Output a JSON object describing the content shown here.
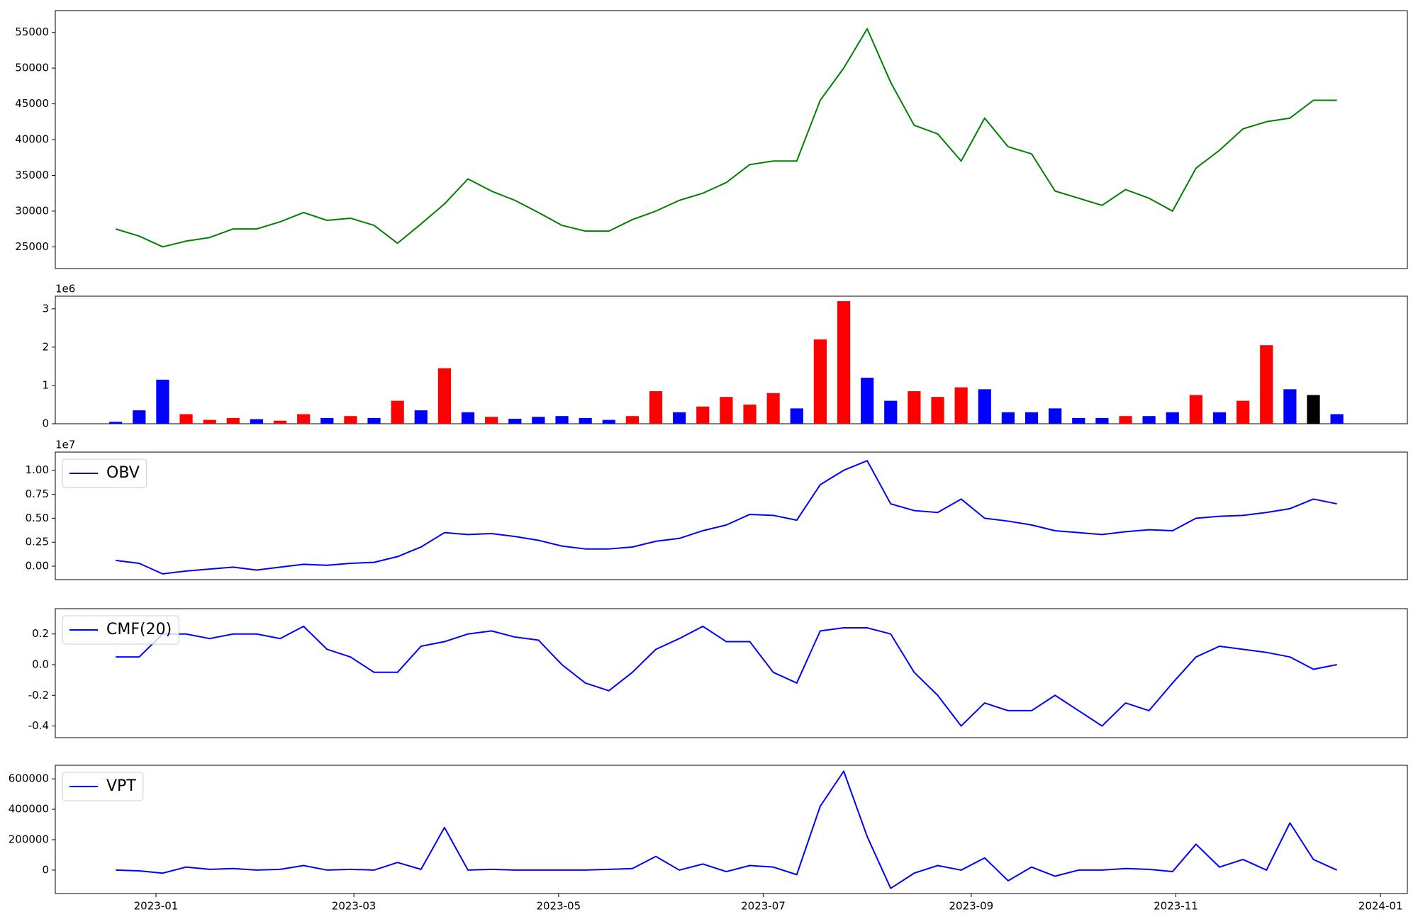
{
  "chart_data": [
    {
      "type": "line",
      "x": [
        "2022-12-20",
        "2022-12-27",
        "2023-01-03",
        "2023-01-10",
        "2023-01-17",
        "2023-01-24",
        "2023-01-31",
        "2023-02-07",
        "2023-02-14",
        "2023-02-21",
        "2023-02-28",
        "2023-03-07",
        "2023-03-14",
        "2023-03-21",
        "2023-03-28",
        "2023-04-04",
        "2023-04-11",
        "2023-04-18",
        "2023-04-25",
        "2023-05-02",
        "2023-05-09",
        "2023-05-16",
        "2023-05-23",
        "2023-05-30",
        "2023-06-06",
        "2023-06-13",
        "2023-06-20",
        "2023-06-27",
        "2023-07-04",
        "2023-07-11",
        "2023-07-18",
        "2023-07-25",
        "2023-08-01",
        "2023-08-08",
        "2023-08-15",
        "2023-08-22",
        "2023-08-29",
        "2023-09-05",
        "2023-09-12",
        "2023-09-19",
        "2023-09-26",
        "2023-10-03",
        "2023-10-10",
        "2023-10-17",
        "2023-10-24",
        "2023-10-31",
        "2023-11-07",
        "2023-11-14",
        "2023-11-21",
        "2023-11-28",
        "2023-12-05",
        "2023-12-12",
        "2023-12-19"
      ],
      "series": [
        {
          "color": "#008000",
          "values": [
            27500,
            26500,
            25000,
            25800,
            26300,
            27500,
            27500,
            28500,
            29800,
            28700,
            29000,
            28000,
            25500,
            28200,
            31000,
            34500,
            32800,
            31500,
            29800,
            28000,
            27200,
            27200,
            28800,
            30000,
            31500,
            32500,
            34000,
            36500,
            37000,
            37000,
            45500,
            50000,
            55500,
            48000,
            42000,
            40800,
            37000,
            43000,
            39000,
            38000,
            32800,
            31800,
            30800,
            33000,
            31800,
            30000,
            36000,
            38500,
            41500,
            42500,
            43000,
            45500,
            45500
          ]
        }
      ],
      "xlim": [
        "2022-12-02",
        "2024-01-09"
      ],
      "ylim": [
        21960,
        58040
      ],
      "yticks": [
        25000,
        30000,
        35000,
        40000,
        45000,
        50000,
        55000
      ]
    },
    {
      "type": "bar",
      "x": [
        "2022-12-20",
        "2022-12-27",
        "2023-01-03",
        "2023-01-10",
        "2023-01-17",
        "2023-01-24",
        "2023-01-31",
        "2023-02-07",
        "2023-02-14",
        "2023-02-21",
        "2023-02-28",
        "2023-03-07",
        "2023-03-14",
        "2023-03-21",
        "2023-03-28",
        "2023-04-04",
        "2023-04-11",
        "2023-04-18",
        "2023-04-25",
        "2023-05-02",
        "2023-05-09",
        "2023-05-16",
        "2023-05-23",
        "2023-05-30",
        "2023-06-06",
        "2023-06-13",
        "2023-06-20",
        "2023-06-27",
        "2023-07-04",
        "2023-07-11",
        "2023-07-18",
        "2023-07-25",
        "2023-08-01",
        "2023-08-08",
        "2023-08-15",
        "2023-08-22",
        "2023-08-29",
        "2023-09-05",
        "2023-09-12",
        "2023-09-19",
        "2023-09-26",
        "2023-10-03",
        "2023-10-10",
        "2023-10-17",
        "2023-10-24",
        "2023-10-31",
        "2023-11-07",
        "2023-11-14",
        "2023-11-21",
        "2023-11-28",
        "2023-12-05",
        "2023-12-12",
        "2023-12-19"
      ],
      "series": [
        {
          "values": [
            50000,
            350000,
            1150000,
            250000,
            100000,
            150000,
            120000,
            80000,
            250000,
            150000,
            200000,
            150000,
            600000,
            350000,
            1450000,
            300000,
            180000,
            130000,
            180000,
            200000,
            150000,
            100000,
            200000,
            850000,
            300000,
            450000,
            700000,
            500000,
            800000,
            400000,
            2200000,
            3200000,
            1200000,
            600000,
            850000,
            700000,
            950000,
            900000,
            300000,
            300000,
            400000,
            150000,
            150000,
            200000,
            200000,
            300000,
            750000,
            300000,
            600000,
            2050000,
            900000,
            750000,
            250000
          ],
          "colors": [
            "#0000ff",
            "#0000ff",
            "#0000ff",
            "#ff0000",
            "#ff0000",
            "#ff0000",
            "#0000ff",
            "#ff0000",
            "#ff0000",
            "#0000ff",
            "#ff0000",
            "#0000ff",
            "#ff0000",
            "#0000ff",
            "#ff0000",
            "#0000ff",
            "#ff0000",
            "#0000ff",
            "#0000ff",
            "#0000ff",
            "#0000ff",
            "#0000ff",
            "#ff0000",
            "#ff0000",
            "#0000ff",
            "#ff0000",
            "#ff0000",
            "#ff0000",
            "#ff0000",
            "#0000ff",
            "#ff0000",
            "#ff0000",
            "#0000ff",
            "#0000ff",
            "#ff0000",
            "#ff0000",
            "#ff0000",
            "#0000ff",
            "#0000ff",
            "#0000ff",
            "#0000ff",
            "#0000ff",
            "#0000ff",
            "#ff0000",
            "#0000ff",
            "#0000ff",
            "#ff0000",
            "#0000ff",
            "#ff0000",
            "#ff0000",
            "#0000ff",
            "#000000",
            "#0000ff"
          ]
        }
      ],
      "xlim": [
        "2022-12-02",
        "2024-01-09"
      ],
      "ylim": [
        0,
        3330000
      ],
      "yticks": [
        {
          "value": 0,
          "label": "0"
        },
        {
          "value": 1000000,
          "label": "1"
        },
        {
          "value": 2000000,
          "label": "2"
        },
        {
          "value": 3000000,
          "label": "3"
        }
      ],
      "y_offset_label": "1e6"
    },
    {
      "type": "line",
      "x": [
        "2022-12-20",
        "2022-12-27",
        "2023-01-03",
        "2023-01-10",
        "2023-01-17",
        "2023-01-24",
        "2023-01-31",
        "2023-02-07",
        "2023-02-14",
        "2023-02-21",
        "2023-02-28",
        "2023-03-07",
        "2023-03-14",
        "2023-03-21",
        "2023-03-28",
        "2023-04-04",
        "2023-04-11",
        "2023-04-18",
        "2023-04-25",
        "2023-05-02",
        "2023-05-09",
        "2023-05-16",
        "2023-05-23",
        "2023-05-30",
        "2023-06-06",
        "2023-06-13",
        "2023-06-20",
        "2023-06-27",
        "2023-07-04",
        "2023-07-11",
        "2023-07-18",
        "2023-07-25",
        "2023-08-01",
        "2023-08-08",
        "2023-08-15",
        "2023-08-22",
        "2023-08-29",
        "2023-09-05",
        "2023-09-12",
        "2023-09-19",
        "2023-09-26",
        "2023-10-03",
        "2023-10-10",
        "2023-10-17",
        "2023-10-24",
        "2023-10-31",
        "2023-11-07",
        "2023-11-14",
        "2023-11-21",
        "2023-11-28",
        "2023-12-05",
        "2023-12-12",
        "2023-12-19"
      ],
      "series": [
        {
          "name": "OBV",
          "color": "#0000ff",
          "values": [
            600000,
            300000,
            -800000,
            -500000,
            -300000,
            -100000,
            -400000,
            -100000,
            200000,
            100000,
            300000,
            400000,
            1000000,
            2000000,
            3500000,
            3300000,
            3400000,
            3100000,
            2700000,
            2100000,
            1800000,
            1800000,
            2000000,
            2600000,
            2900000,
            3700000,
            4300000,
            5400000,
            5300000,
            4800000,
            8500000,
            10000000,
            11000000,
            6500000,
            5800000,
            5600000,
            7000000,
            5000000,
            4700000,
            4300000,
            3700000,
            3500000,
            3300000,
            3600000,
            3800000,
            3700000,
            5000000,
            5200000,
            5300000,
            5600000,
            6000000,
            7000000,
            6500000
          ]
        }
      ],
      "xlim": [
        "2022-12-02",
        "2024-01-09"
      ],
      "ylim": [
        -1400000,
        11900000
      ],
      "yticks": [
        {
          "value": 0,
          "label": "0.00"
        },
        {
          "value": 2500000,
          "label": "0.25"
        },
        {
          "value": 5000000,
          "label": "0.50"
        },
        {
          "value": 7500000,
          "label": "0.75"
        },
        {
          "value": 10000000,
          "label": "1.00"
        }
      ],
      "y_offset_label": "1e7",
      "legend": "upper left"
    },
    {
      "type": "line",
      "x": [
        "2022-12-20",
        "2022-12-27",
        "2023-01-03",
        "2023-01-10",
        "2023-01-17",
        "2023-01-24",
        "2023-01-31",
        "2023-02-07",
        "2023-02-14",
        "2023-02-21",
        "2023-02-28",
        "2023-03-07",
        "2023-03-14",
        "2023-03-21",
        "2023-03-28",
        "2023-04-04",
        "2023-04-11",
        "2023-04-18",
        "2023-04-25",
        "2023-05-02",
        "2023-05-09",
        "2023-05-16",
        "2023-05-23",
        "2023-05-30",
        "2023-06-06",
        "2023-06-13",
        "2023-06-20",
        "2023-06-27",
        "2023-07-04",
        "2023-07-11",
        "2023-07-18",
        "2023-07-25",
        "2023-08-01",
        "2023-08-08",
        "2023-08-15",
        "2023-08-22",
        "2023-08-29",
        "2023-09-05",
        "2023-09-12",
        "2023-09-19",
        "2023-09-26",
        "2023-10-03",
        "2023-10-10",
        "2023-10-17",
        "2023-10-24",
        "2023-10-31",
        "2023-11-07",
        "2023-11-14",
        "2023-11-21",
        "2023-11-28",
        "2023-12-05",
        "2023-12-12",
        "2023-12-19"
      ],
      "series": [
        {
          "name": "CMF(20)",
          "color": "#0000ff",
          "values": [
            0.05,
            0.05,
            0.2,
            0.2,
            0.17,
            0.2,
            0.2,
            0.17,
            0.25,
            0.1,
            0.05,
            -0.05,
            -0.05,
            0.12,
            0.15,
            0.2,
            0.22,
            0.18,
            0.16,
            0.0,
            -0.12,
            -0.17,
            -0.05,
            0.1,
            0.17,
            0.25,
            0.15,
            0.15,
            -0.05,
            -0.12,
            0.22,
            0.24,
            0.24,
            0.2,
            -0.05,
            -0.2,
            -0.4,
            -0.25,
            -0.3,
            -0.3,
            -0.2,
            -0.3,
            -0.4,
            -0.25,
            -0.3,
            -0.12,
            0.05,
            0.12,
            0.1,
            0.08,
            0.05,
            -0.03,
            0.0
          ]
        }
      ],
      "xlim": [
        "2022-12-02",
        "2024-01-09"
      ],
      "ylim": [
        -0.476,
        0.365
      ],
      "yticks": [
        -0.4,
        -0.2,
        {
          "value": 0,
          "label": "0.0"
        },
        0.2
      ],
      "legend": "upper left"
    },
    {
      "type": "line",
      "x": [
        "2022-12-20",
        "2022-12-27",
        "2023-01-03",
        "2023-01-10",
        "2023-01-17",
        "2023-01-24",
        "2023-01-31",
        "2023-02-07",
        "2023-02-14",
        "2023-02-21",
        "2023-02-28",
        "2023-03-07",
        "2023-03-14",
        "2023-03-21",
        "2023-03-28",
        "2023-04-04",
        "2023-04-11",
        "2023-04-18",
        "2023-04-25",
        "2023-05-02",
        "2023-05-09",
        "2023-05-16",
        "2023-05-23",
        "2023-05-30",
        "2023-06-06",
        "2023-06-13",
        "2023-06-20",
        "2023-06-27",
        "2023-07-04",
        "2023-07-11",
        "2023-07-18",
        "2023-07-25",
        "2023-08-01",
        "2023-08-08",
        "2023-08-15",
        "2023-08-22",
        "2023-08-29",
        "2023-09-05",
        "2023-09-12",
        "2023-09-19",
        "2023-09-26",
        "2023-10-03",
        "2023-10-10",
        "2023-10-17",
        "2023-10-24",
        "2023-10-31",
        "2023-11-07",
        "2023-11-14",
        "2023-11-21",
        "2023-11-28",
        "2023-12-05",
        "2023-12-12",
        "2023-12-19"
      ],
      "series": [
        {
          "name": "VPT",
          "color": "#0000ff",
          "values": [
            0,
            -5000,
            -20000,
            20000,
            5000,
            10000,
            0,
            5000,
            30000,
            0,
            5000,
            0,
            50000,
            5000,
            280000,
            0,
            5000,
            0,
            0,
            0,
            0,
            5000,
            10000,
            90000,
            0,
            40000,
            -10000,
            30000,
            20000,
            -30000,
            420000,
            650000,
            220000,
            -120000,
            -20000,
            30000,
            0,
            80000,
            -70000,
            20000,
            -40000,
            0,
            0,
            10000,
            5000,
            -10000,
            170000,
            20000,
            70000,
            0,
            310000,
            70000,
            0
          ]
        }
      ],
      "xlim": [
        "2022-12-02",
        "2024-01-09"
      ],
      "ylim": [
        -154000,
        689000
      ],
      "yticks": [
        0,
        200000,
        400000,
        600000
      ],
      "xticks": [
        "2023-01",
        "2023-03",
        "2023-05",
        "2023-07",
        "2023-09",
        "2023-11",
        "2024-01"
      ],
      "legend": "upper left"
    }
  ]
}
